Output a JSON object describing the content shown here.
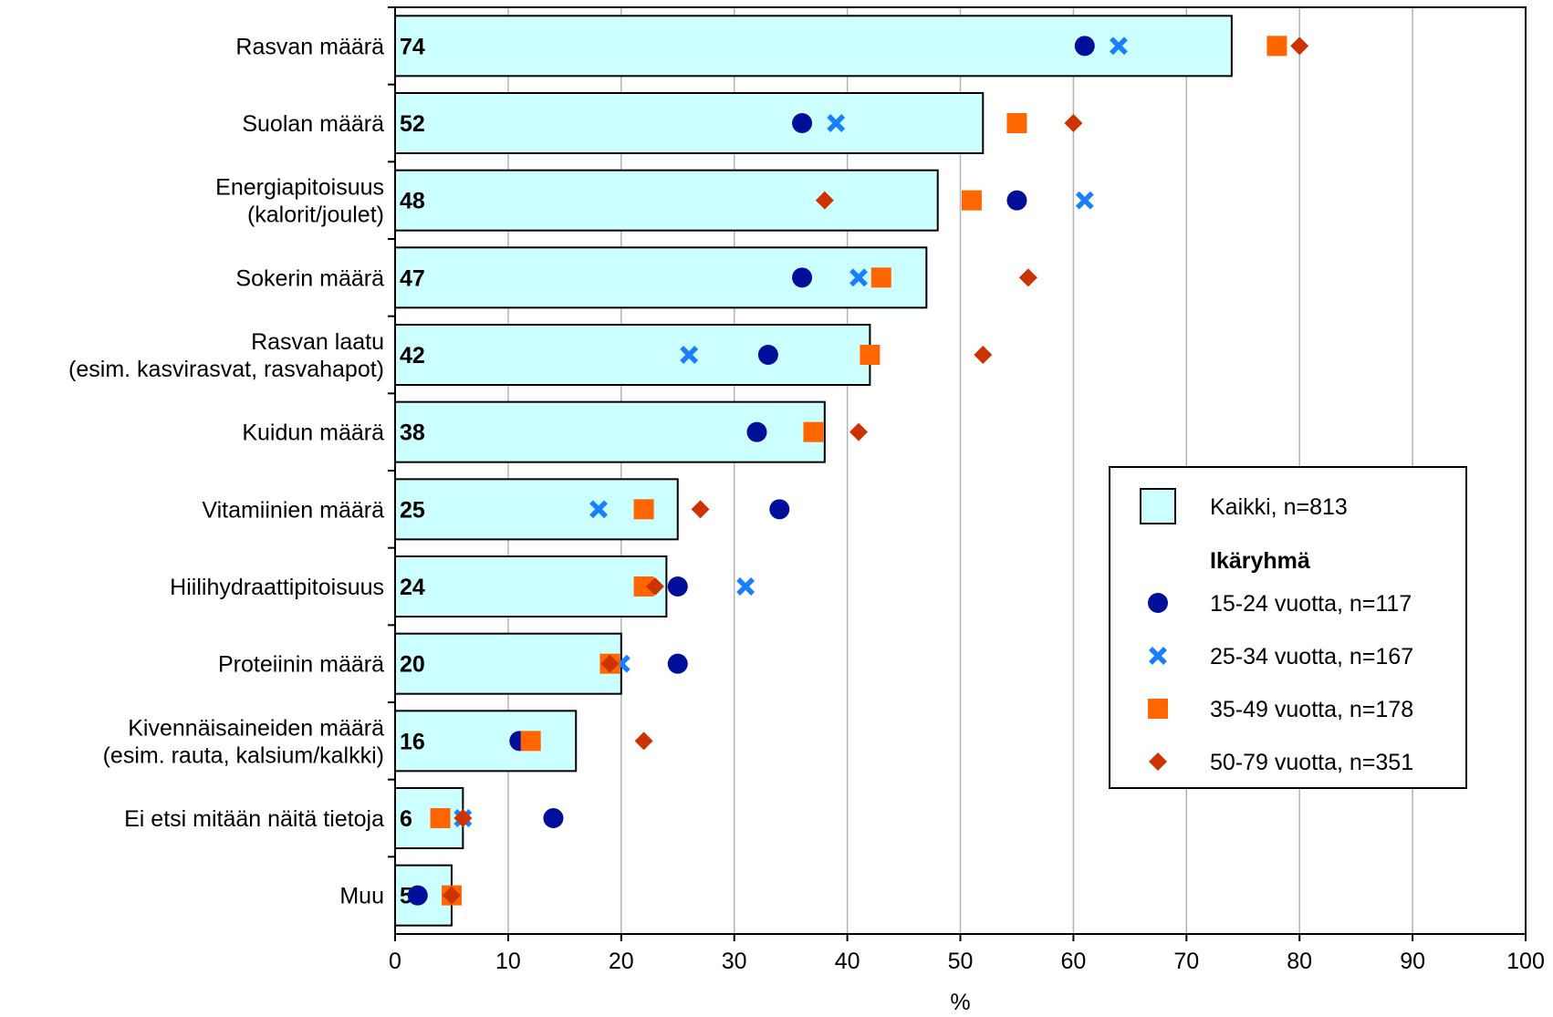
{
  "chart_data": {
    "type": "bar",
    "orientation": "horizontal",
    "xlabel": "%",
    "xlim": [
      0,
      100
    ],
    "xticks": [
      0,
      10,
      20,
      30,
      40,
      50,
      60,
      70,
      80,
      90,
      100
    ],
    "grid": true,
    "legend_position": "right",
    "legend_group_title": "Ikäryhmä",
    "categories": [
      [
        "Rasvan määrä"
      ],
      [
        "Suolan määrä"
      ],
      [
        "Energiapitoisuus",
        "(kalorit/joulet)"
      ],
      [
        "Sokerin määrä"
      ],
      [
        "Rasvan laatu",
        "(esim. kasvirasvat, rasvahapot)"
      ],
      [
        "Kuidun määrä"
      ],
      [
        "Vitamiinien määrä"
      ],
      [
        "Hiilihydraattipitoisuus"
      ],
      [
        "Proteiinin määrä"
      ],
      [
        "Kivennäisaineiden määrä",
        "(esim. rauta, kalsium/kalkki)"
      ],
      [
        "Ei etsi mitään näitä tietoja"
      ],
      [
        "Muu"
      ]
    ],
    "bar_series": {
      "name": "Kaikki, n=813",
      "color": "#ccffff",
      "values": [
        74,
        52,
        48,
        47,
        42,
        38,
        25,
        24,
        20,
        16,
        6,
        5
      ]
    },
    "series": [
      {
        "name": "15-24 vuotta, n=117",
        "marker": "circle",
        "color": "#000f99",
        "values": [
          61,
          36,
          55,
          36,
          33,
          32,
          34,
          25,
          25,
          11,
          14,
          2
        ]
      },
      {
        "name": "25-34 vuotta, n=167",
        "marker": "x",
        "color": "#1a7fff",
        "values": [
          64,
          39,
          61,
          41,
          26,
          null,
          18,
          31,
          20,
          null,
          6,
          null
        ]
      },
      {
        "name": "35-49 vuotta, n=178",
        "marker": "square",
        "color": "#ff6600",
        "values": [
          78,
          55,
          51,
          43,
          42,
          37,
          22,
          22,
          19,
          12,
          4,
          5
        ]
      },
      {
        "name": "50-79 vuotta, n=351",
        "marker": "diamond",
        "color": "#cc3300",
        "values": [
          80,
          60,
          38,
          56,
          52,
          41,
          27,
          23,
          19,
          22,
          6,
          5
        ]
      }
    ]
  }
}
